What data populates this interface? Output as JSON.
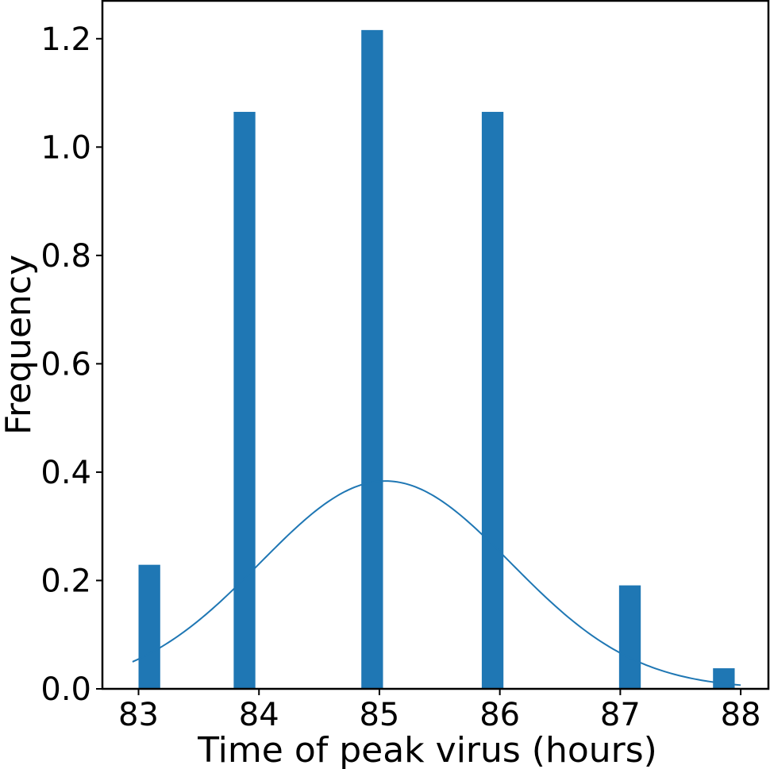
{
  "chart_data": {
    "type": "bar",
    "title": "",
    "xlabel": "Time of peak virus (hours)",
    "ylabel": "Frequency",
    "xlim": [
      82.7,
      88.23
    ],
    "ylim": [
      0,
      1.27
    ],
    "xticks": [
      "83",
      "84",
      "85",
      "86",
      "87",
      "88"
    ],
    "yticks": [
      "0.0",
      "0.2",
      "0.4",
      "0.6",
      "0.8",
      "1.0",
      "1.2"
    ],
    "bar_width": 0.18,
    "bars": [
      {
        "x": 83.09,
        "value": 0.229
      },
      {
        "x": 83.88,
        "value": 1.065
      },
      {
        "x": 84.94,
        "value": 1.216
      },
      {
        "x": 85.94,
        "value": 1.065
      },
      {
        "x": 87.08,
        "value": 0.191
      },
      {
        "x": 87.86,
        "value": 0.038
      }
    ],
    "fit_curve": {
      "type": "normal",
      "mean": 85.05,
      "std": 1.04,
      "x_range": [
        82.95,
        88.0
      ]
    },
    "bar_color": "#1f77b4",
    "line_color": "#1f77b4",
    "grid": false,
    "legend": "none"
  }
}
